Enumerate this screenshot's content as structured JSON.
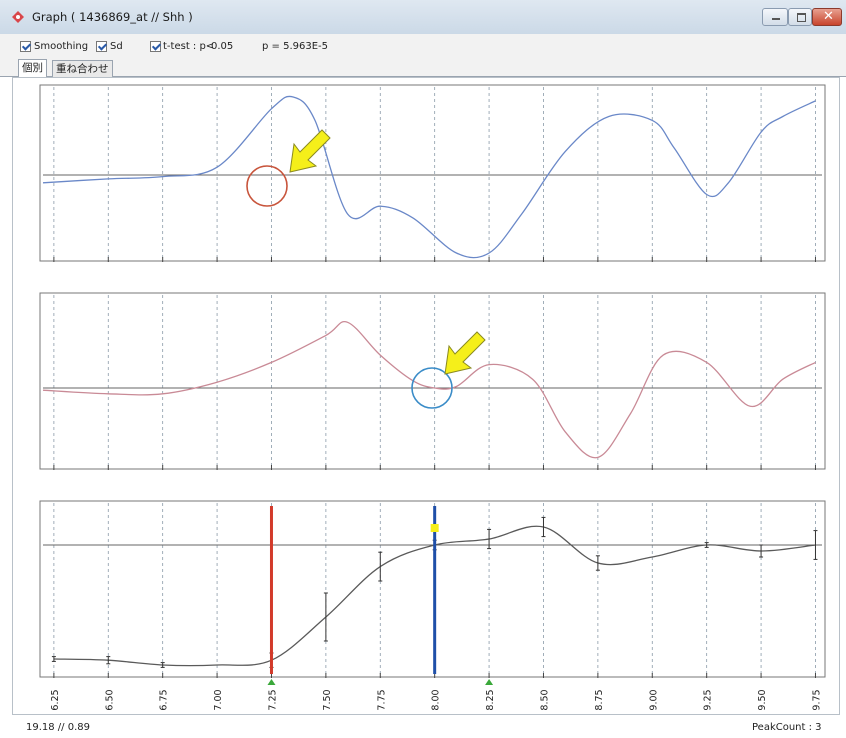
{
  "window": {
    "title": "Graph ( 1436869_at // Shh )",
    "buttons": [
      "minimize",
      "maximize",
      "close"
    ]
  },
  "toolbar": {
    "smoothing_label": "Smoothing",
    "smoothing_checked": true,
    "sd_label": "Sd",
    "sd_checked": true,
    "ttest_label": "t-test : p<",
    "ttest_checked": true,
    "ttest_threshold": "0.05",
    "pvalue_text": "p = 5.963E-5"
  },
  "tabs": [
    {
      "label": "個別",
      "active": true
    },
    {
      "label": "重ね合わせ",
      "active": false
    }
  ],
  "status": {
    "left": "19.18 // 0.89",
    "right": "PeakCount : 3"
  },
  "colors": {
    "panel1_line": "#6a88c8",
    "panel2_line": "#c98a96",
    "panel3_line": "#5a5a5a",
    "marker_red": "#d23a2a",
    "marker_blue": "#1f4fa8",
    "arrow_fill": "#f5ef1a",
    "circle1": "#c8553c",
    "circle2": "#3a8cc8",
    "peak_marker": "#3aa83a"
  },
  "chart_data": [
    {
      "type": "line",
      "panel": "top",
      "x": [
        6.2,
        6.5,
        6.75,
        7.0,
        7.25,
        7.35,
        7.45,
        7.6,
        7.75,
        7.9,
        8.1,
        8.25,
        8.4,
        8.6,
        8.8,
        9.0,
        9.1,
        9.25,
        9.35,
        9.5,
        9.6,
        9.75
      ],
      "y": [
        -0.1,
        -0.05,
        -0.02,
        0.1,
        0.85,
        1.0,
        0.7,
        -0.5,
        -0.4,
        -0.55,
        -1.0,
        -1.0,
        -0.5,
        0.3,
        0.75,
        0.7,
        0.35,
        -0.25,
        -0.1,
        0.55,
        0.75,
        0.95
      ],
      "ylim": [
        -1.0,
        1.0
      ],
      "xlim": [
        6.2,
        9.78
      ],
      "grid": true
    },
    {
      "type": "line",
      "panel": "middle",
      "x": [
        6.2,
        6.5,
        6.75,
        7.0,
        7.25,
        7.5,
        7.6,
        7.75,
        7.9,
        8.0,
        8.1,
        8.25,
        8.45,
        8.6,
        8.75,
        8.9,
        9.05,
        9.25,
        9.45,
        9.6,
        9.75
      ],
      "y": [
        -0.03,
        -0.08,
        -0.08,
        0.08,
        0.35,
        0.72,
        0.9,
        0.45,
        0.1,
        0.0,
        0.02,
        0.32,
        0.12,
        -0.6,
        -0.95,
        -0.35,
        0.45,
        0.35,
        -0.25,
        0.12,
        0.35
      ],
      "ylim": [
        -1.0,
        1.0
      ],
      "xlim": [
        6.2,
        9.78
      ],
      "grid": true
    },
    {
      "type": "line",
      "panel": "bottom",
      "x": [
        6.25,
        6.5,
        6.75,
        7.0,
        7.25,
        7.5,
        7.75,
        8.0,
        8.25,
        8.5,
        8.75,
        9.0,
        9.25,
        9.5,
        9.75
      ],
      "y": [
        0.05,
        0.04,
        0.0,
        0.0,
        0.04,
        0.4,
        0.82,
        1.0,
        1.05,
        1.15,
        0.85,
        0.9,
        1.0,
        0.95,
        1.0
      ],
      "sd": [
        0.02,
        0.03,
        0.02,
        0.0,
        0.06,
        0.2,
        0.12,
        0.04,
        0.08,
        0.08,
        0.06,
        0.0,
        0.02,
        0.05,
        0.12
      ],
      "ylim": [
        0.0,
        1.3
      ],
      "xlim": [
        6.2,
        9.78
      ],
      "tick_labels": [
        "6.25",
        "6.50",
        "6.75",
        "7.00",
        "7.25",
        "7.50",
        "7.75",
        "8.00",
        "8.25",
        "8.50",
        "8.75",
        "9.00",
        "9.25",
        "9.50",
        "9.75"
      ],
      "peak_lines": [
        7.25,
        8.0
      ],
      "peak_markers": [
        7.25,
        8.25
      ],
      "grid": true
    }
  ]
}
